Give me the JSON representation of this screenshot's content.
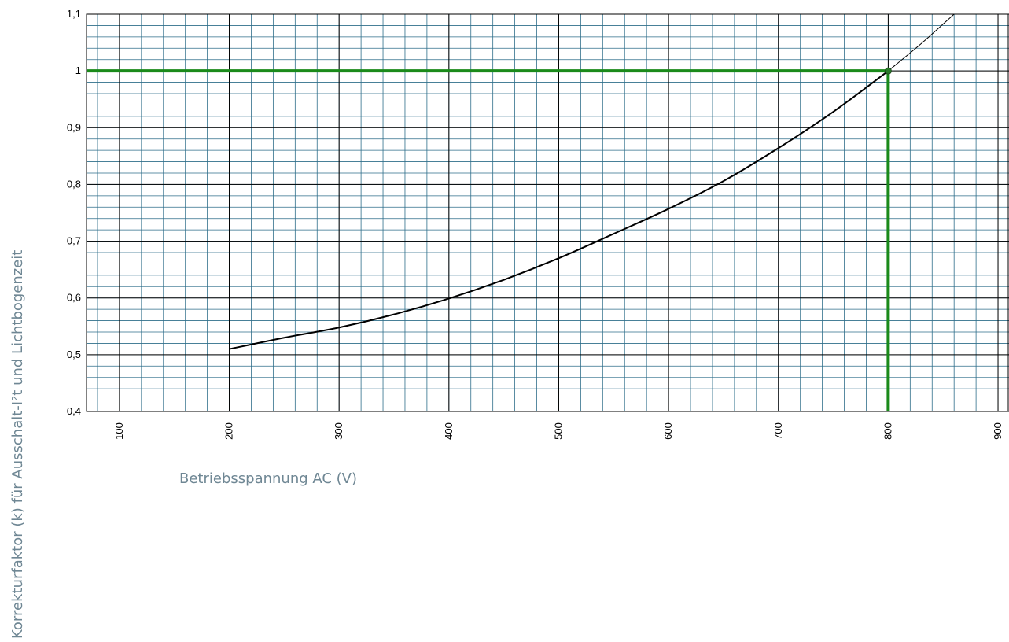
{
  "chart_data": {
    "type": "line",
    "xlabel": "Betriebsspannung AC (V)",
    "ylabel": "Korrekturfaktor (k) für Ausschalt-I²t und Lichtbogenzeit",
    "xlim": [
      70,
      910
    ],
    "ylim": [
      0.4,
      1.1
    ],
    "x_ticks": [
      100,
      200,
      300,
      400,
      500,
      600,
      700,
      800,
      900
    ],
    "x_tick_labels": [
      "100",
      "200",
      "300",
      "400",
      "500",
      "600",
      "700",
      "800",
      "900"
    ],
    "y_ticks": [
      0.4,
      0.5,
      0.6,
      0.7,
      0.8,
      0.9,
      1.0,
      1.1
    ],
    "y_tick_labels": [
      "0,4",
      "0,5",
      "0,6",
      "0,7",
      "0,8",
      "0,9",
      "1",
      "1,1"
    ],
    "grid": true,
    "minor_grid": {
      "x_step": 20,
      "y_step": 0.02
    },
    "series": [
      {
        "x": [
          200,
          250,
          300,
          350,
          400,
          450,
          500,
          550,
          600,
          650,
          700,
          750,
          800
        ],
        "y": [
          0.51,
          0.53,
          0.548,
          0.571,
          0.599,
          0.632,
          0.67,
          0.713,
          0.757,
          0.806,
          0.864,
          0.928,
          1.0
        ],
        "color": "#000000"
      },
      {
        "x": [
          800,
          830,
          860
        ],
        "y": [
          1.0,
          1.048,
          1.1
        ],
        "color": "#000000"
      }
    ],
    "annotations": [
      {
        "type": "hline",
        "y": 1.0,
        "x_from": 70,
        "x_to": 800,
        "color": "#1a8a1a"
      },
      {
        "type": "vline",
        "x": 800,
        "y_from": 0.4,
        "y_to": 1.0,
        "color": "#1a8a1a"
      },
      {
        "type": "point",
        "x": 800,
        "y": 1.0,
        "color": "#2a7a2a"
      }
    ],
    "colors": {
      "minor_grid": "#2e6e8a",
      "major_grid": "#000000",
      "axis_title": "#6f8794"
    }
  }
}
